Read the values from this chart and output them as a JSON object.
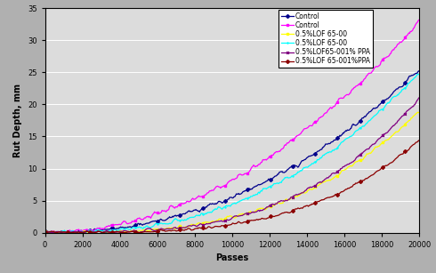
{
  "title": "",
  "xlabel": "Passes",
  "ylabel": "Rut Depth, mm",
  "xlim": [
    0,
    20000
  ],
  "ylim": [
    0,
    35
  ],
  "xticks": [
    0,
    2000,
    4000,
    6000,
    8000,
    10000,
    12000,
    14000,
    16000,
    18000,
    20000
  ],
  "yticks": [
    0,
    5,
    10,
    15,
    20,
    25,
    30,
    35
  ],
  "background_color": "#b0b0b0",
  "plot_bg_color": "#dcdcdc",
  "series": [
    {
      "label": "Control",
      "color": "#00008B",
      "marker": "D",
      "end_y": 25.5,
      "exp": 2.2,
      "noise": 0.3,
      "seed": 1
    },
    {
      "label": "Control",
      "color": "#FF00FF",
      "marker": "s",
      "end_y": 33.0,
      "exp": 2.0,
      "noise": 0.35,
      "seed": 2
    },
    {
      "label": "0.5%LOF 65-00",
      "color": "#FFFF00",
      "marker": "s",
      "end_y": 19.0,
      "exp": 3.0,
      "noise": 0.25,
      "seed": 3
    },
    {
      "label": "0.5%LOF 65-00",
      "color": "#00FFFF",
      "marker": "+",
      "end_y": 25.0,
      "exp": 2.5,
      "noise": 0.3,
      "seed": 4
    },
    {
      "label": "0.5%LOF65-001% PPA",
      "color": "#800080",
      "marker": "x",
      "end_y": 21.0,
      "exp": 3.2,
      "noise": 0.25,
      "seed": 5
    },
    {
      "label": "0.5%LOF 65-001%PPA",
      "color": "#8B0000",
      "marker": "D",
      "end_y": 14.5,
      "exp": 3.5,
      "noise": 0.2,
      "seed": 6
    }
  ],
  "legend_fontsize": 5.5,
  "axis_fontsize": 7,
  "tick_fontsize": 6,
  "figsize": [
    4.9,
    3.07
  ],
  "dpi": 100
}
